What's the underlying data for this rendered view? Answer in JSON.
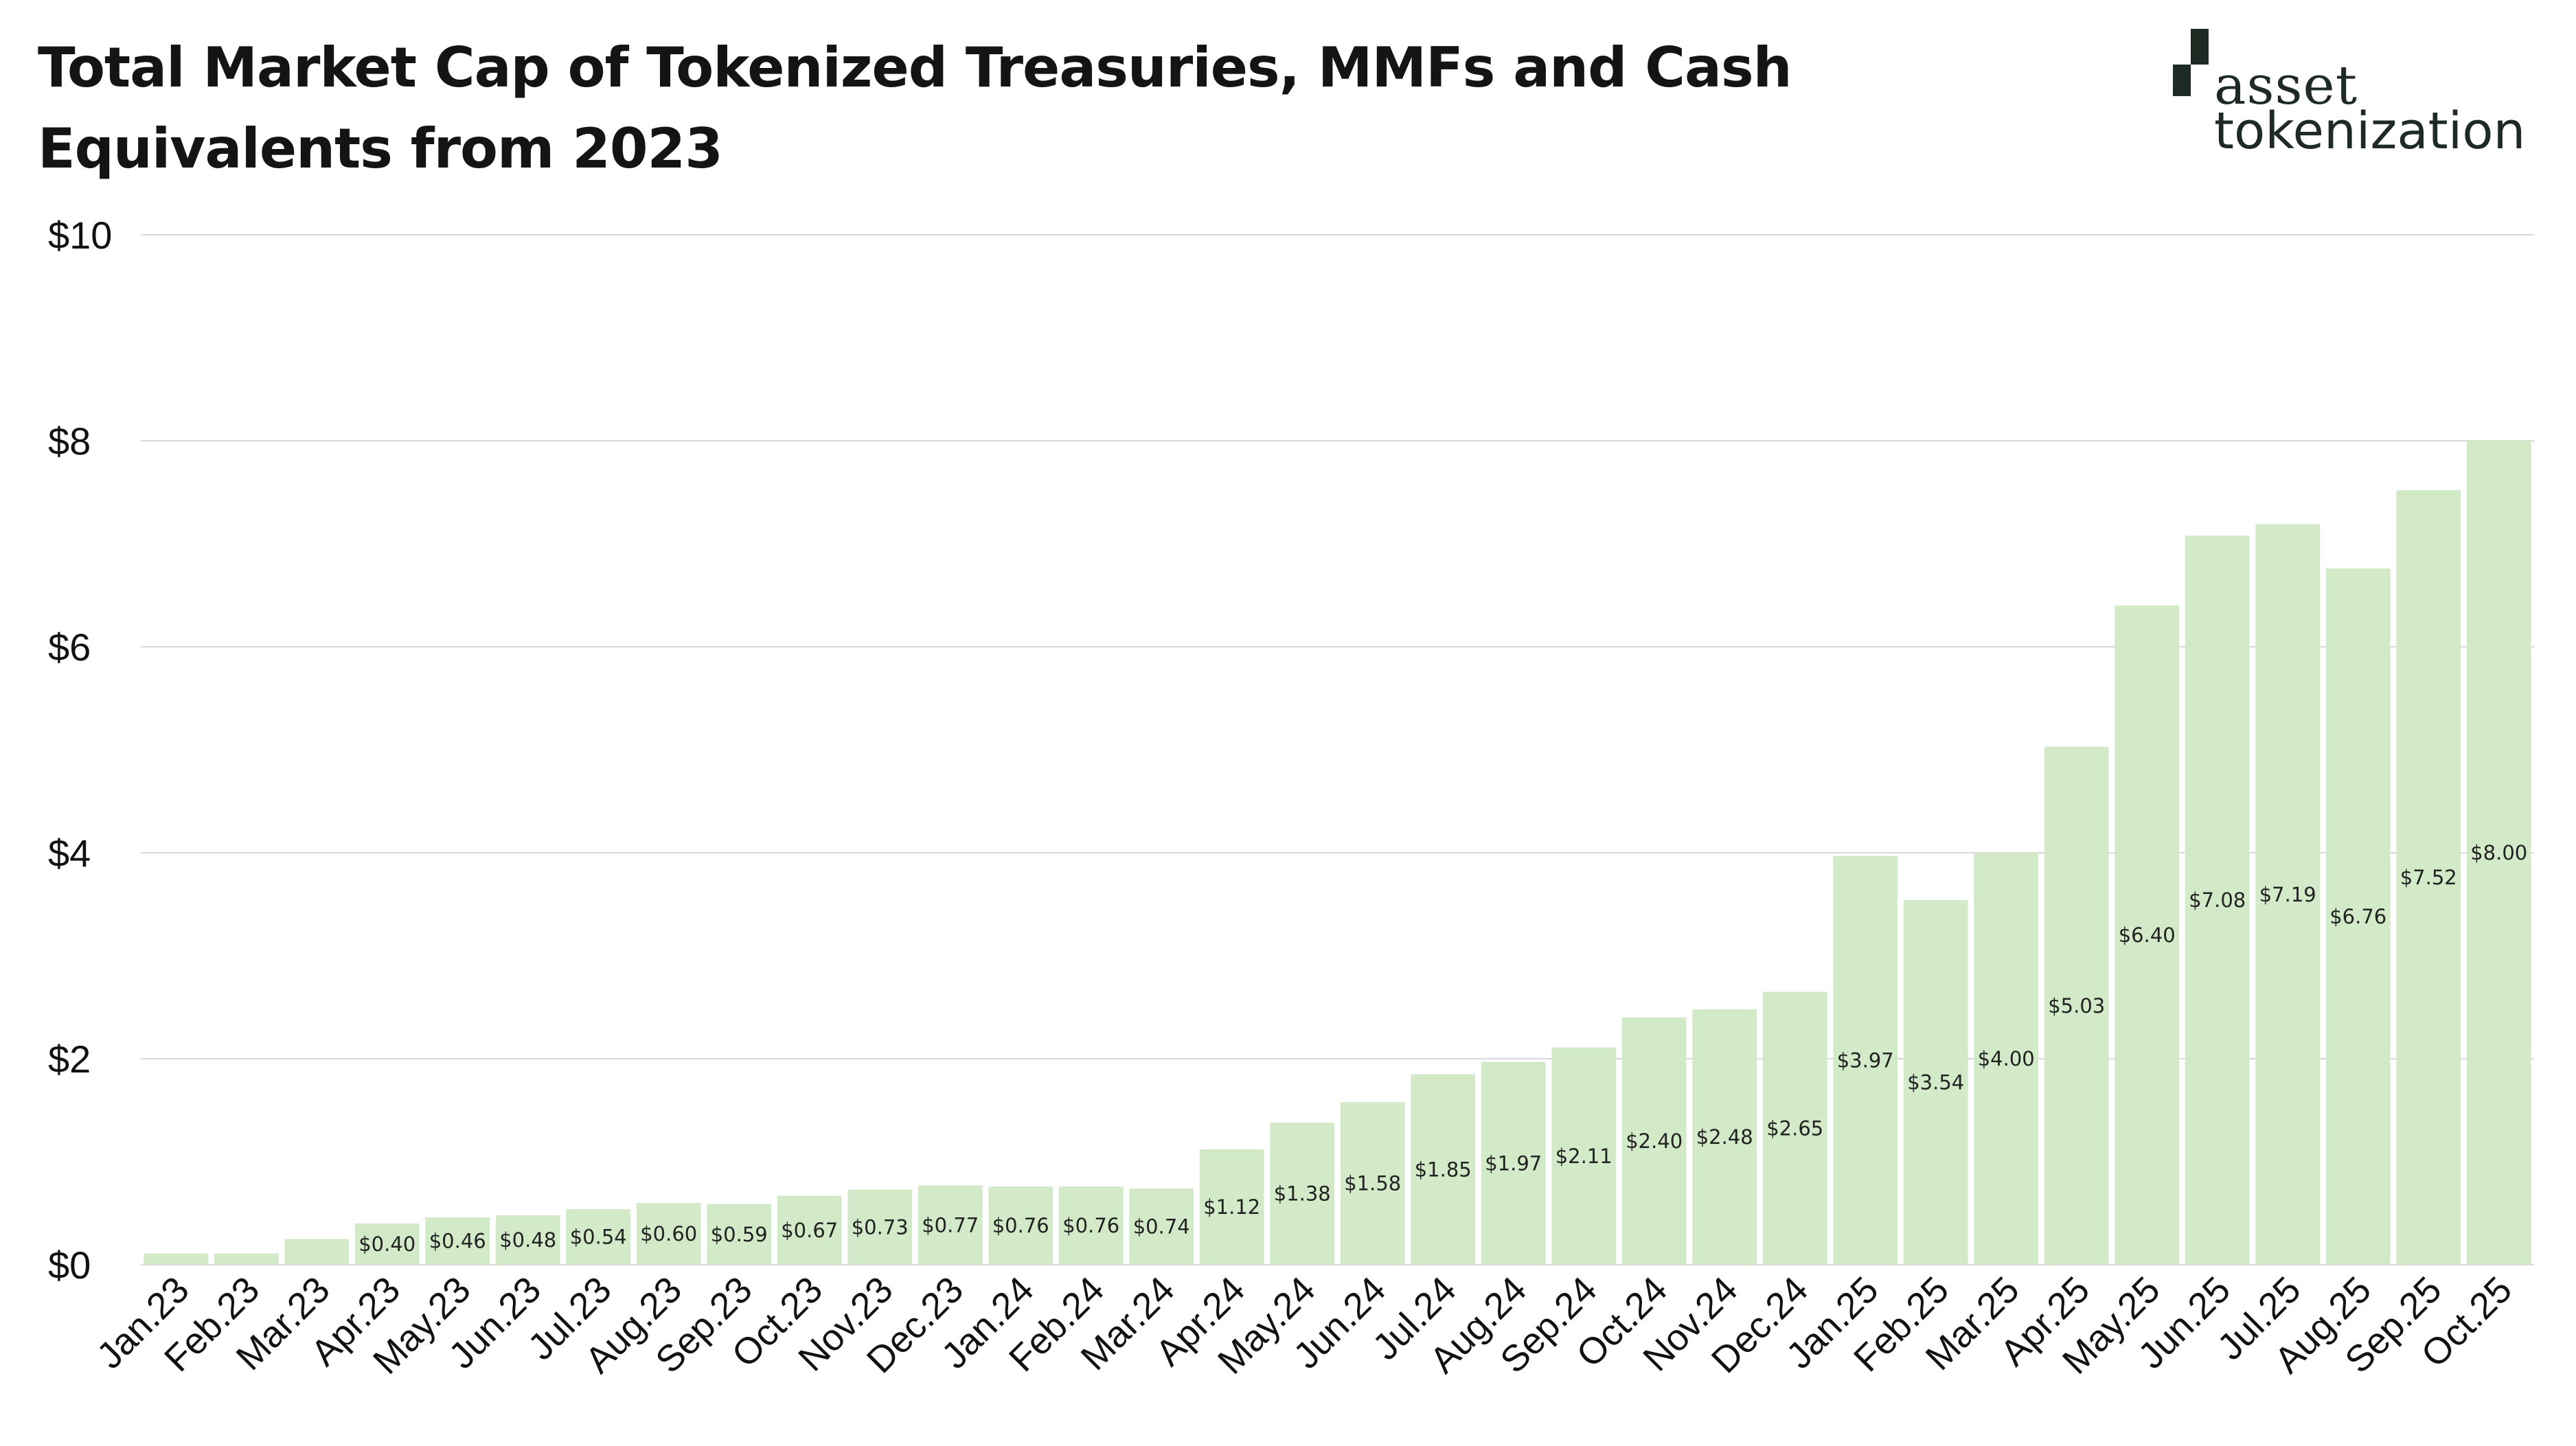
{
  "title": "Total Market Cap of Tokenized Treasuries, MMFs and Cash Equivalents from 2023",
  "logo": {
    "line1": "asset",
    "line2": "tokenization",
    "icon": "asset-tokenization-logo-icon"
  },
  "colors": {
    "bar": "#d2eac8",
    "grid": "#d9d9d9",
    "text": "#111111",
    "logo": "#1d2b24"
  },
  "chart_data": {
    "type": "bar",
    "title": "Total Market Cap of Tokenized Treasuries, MMFs and Cash Equivalents from 2023",
    "xlabel": "",
    "ylabel": "",
    "ylim": [
      0,
      10
    ],
    "yticks": [
      0,
      2,
      4,
      6,
      8,
      10
    ],
    "ytick_labels": [
      "$0",
      "$2",
      "$4",
      "$6",
      "$8",
      "$10"
    ],
    "grid": true,
    "legend": "none",
    "categories": [
      "Jan.23",
      "Feb.23",
      "Mar.23",
      "Apr.23",
      "May.23",
      "Jun.23",
      "Jul.23",
      "Aug.23",
      "Sep.23",
      "Oct.23",
      "Nov.23",
      "Dec.23",
      "Jan.24",
      "Feb.24",
      "Mar.24",
      "Apr.24",
      "May.24",
      "Jun.24",
      "Jul.24",
      "Aug.24",
      "Sep.24",
      "Oct.24",
      "Nov.24",
      "Dec.24",
      "Jan.25",
      "Feb.25",
      "Mar.25",
      "Apr.25",
      "May.25",
      "Jun.25",
      "Jul.25",
      "Aug.25",
      "Sep.25",
      "Oct.25"
    ],
    "values": [
      0.11,
      0.11,
      0.25,
      0.4,
      0.46,
      0.48,
      0.54,
      0.6,
      0.59,
      0.67,
      0.73,
      0.77,
      0.76,
      0.76,
      0.74,
      1.12,
      1.38,
      1.58,
      1.85,
      1.97,
      2.11,
      2.4,
      2.48,
      2.65,
      3.97,
      3.54,
      4.0,
      5.03,
      6.4,
      7.08,
      7.19,
      6.76,
      7.52,
      8.0
    ],
    "data_labels": [
      "",
      "",
      "",
      "$0.40",
      "$0.46",
      "$0.48",
      "$0.54",
      "$0.60",
      "$0.59",
      "$0.67",
      "$0.73",
      "$0.77",
      "$0.76",
      "$0.76",
      "$0.74",
      "$1.12",
      "$1.38",
      "$1.58",
      "$1.85",
      "$1.97",
      "$2.11",
      "$2.40",
      "$2.48",
      "$2.65",
      "$3.97",
      "$3.54",
      "$4.00",
      "$5.03",
      "$6.40",
      "$7.08",
      "$7.19",
      "$6.76",
      "$7.52",
      "$8.00"
    ]
  }
}
